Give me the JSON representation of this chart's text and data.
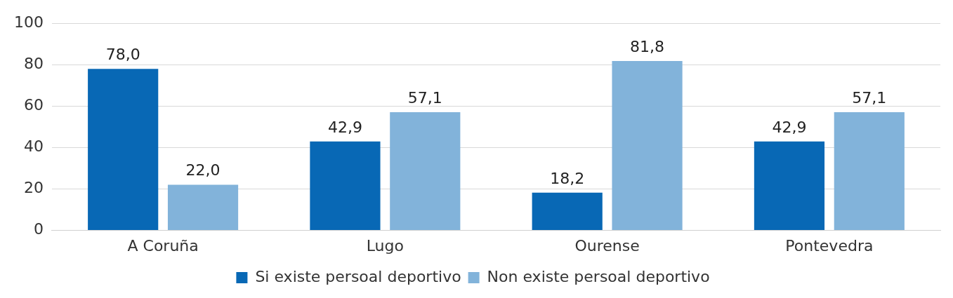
{
  "chart_data": {
    "type": "bar",
    "categories": [
      "A Coruña",
      "Lugo",
      "Ourense",
      "Pontevedra"
    ],
    "series": [
      {
        "name": "Si existe persoal deportivo",
        "color": "#0868b5",
        "values": [
          78.0,
          42.9,
          18.2,
          42.9
        ],
        "value_labels": [
          "78,0",
          "42,9",
          "18,2",
          "42,9"
        ]
      },
      {
        "name": "Non existe persoal deportivo",
        "color": "#82b3da",
        "values": [
          22.0,
          57.1,
          81.8,
          57.1
        ],
        "value_labels": [
          "22,0",
          "57,1",
          "81,8",
          "57,1"
        ]
      }
    ],
    "ylim": [
      0,
      100
    ],
    "yticks": [
      0,
      20,
      40,
      60,
      80,
      100
    ],
    "grid": "y",
    "legend": "bottom"
  }
}
